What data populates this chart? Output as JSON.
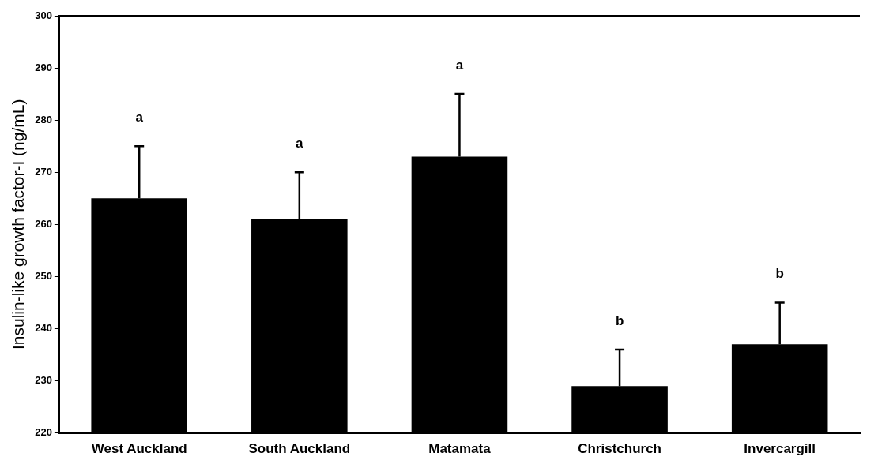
{
  "chart_data": {
    "type": "bar",
    "ylabel": "Insulin-like growth factor-I (ng/mL)",
    "categories": [
      "West Auckland",
      "South Auckland",
      "Matamata",
      "Christchurch",
      "Invercargill"
    ],
    "values": [
      265,
      261,
      273,
      229,
      237
    ],
    "errors": [
      [
        265,
        275
      ],
      [
        261,
        270
      ],
      [
        273,
        285
      ],
      [
        229,
        236
      ],
      [
        237,
        245
      ]
    ],
    "color": "#000000",
    "ylim": [
      220,
      300
    ],
    "yticks": [
      220,
      230,
      240,
      250,
      260,
      270,
      280,
      290,
      300
    ],
    "grid": false,
    "legend": false,
    "annotations": [
      "a",
      "a",
      "a",
      "b",
      "b"
    ]
  }
}
